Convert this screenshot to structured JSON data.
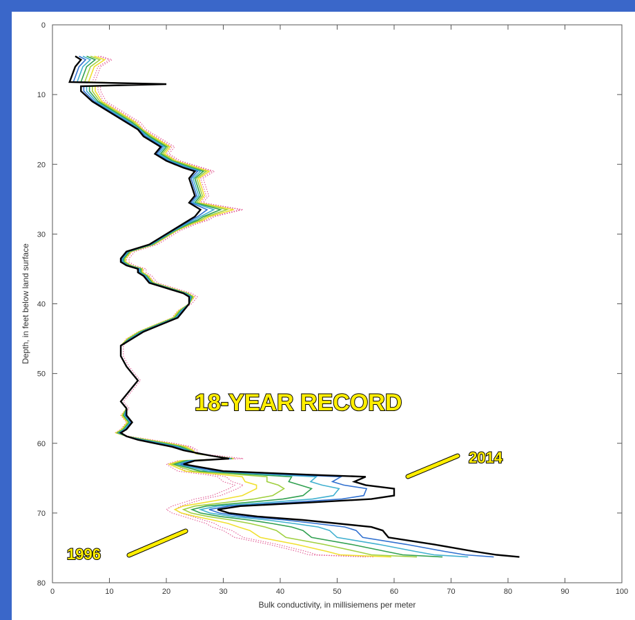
{
  "chart_data": {
    "type": "line",
    "title": "",
    "xlabel": "Bulk conductivity, in millisiemens per meter",
    "ylabel": "Depth, in feet below land surface",
    "xlim": [
      0,
      100
    ],
    "ylim": [
      80,
      0
    ],
    "y_inverted": true,
    "xticks": [
      0,
      10,
      20,
      30,
      40,
      50,
      60,
      70,
      80,
      90,
      100
    ],
    "yticks": [
      0,
      10,
      20,
      30,
      40,
      50,
      60,
      70,
      80
    ],
    "annotations": {
      "record": "18-YEAR RECORD",
      "first_year": "1996",
      "last_year": "2014"
    },
    "colors": {
      "1996": "#e05590",
      "intermediate": [
        "#f0e030",
        "#a0d040",
        "#30a050",
        "#40b0d0",
        "#3070d0"
      ],
      "2014": "#000000",
      "callout": "#ffee00"
    },
    "series": [
      {
        "name": "2014",
        "x": [
          4,
          5,
          4,
          3,
          20,
          5,
          5,
          7,
          9,
          11,
          13,
          15,
          16,
          18,
          19,
          18,
          20,
          23,
          25,
          24,
          25,
          24,
          26,
          25,
          24,
          23,
          21,
          19,
          17,
          15,
          13,
          12,
          12,
          13,
          15,
          15,
          16,
          17,
          19,
          21,
          23,
          24,
          24,
          23,
          22,
          19,
          16,
          14,
          12,
          12,
          13,
          14,
          15,
          14,
          13,
          12,
          13,
          13,
          14,
          13,
          12,
          13,
          15,
          18,
          21,
          23,
          26,
          28,
          31,
          25,
          23,
          30,
          45,
          55,
          53,
          55,
          60,
          60,
          56,
          45,
          33,
          29,
          31,
          36,
          44,
          50,
          56,
          58,
          59,
          67,
          74,
          78,
          82
        ],
        "y": [
          4.5,
          5.0,
          6.0,
          8.2,
          8.5,
          8.8,
          9.5,
          11.0,
          12.0,
          13.0,
          14.0,
          15.0,
          16.0,
          17.0,
          17.5,
          18.5,
          19.5,
          20.5,
          21.0,
          22.0,
          24.5,
          25.5,
          26.5,
          27.5,
          28.0,
          28.5,
          29.5,
          30.5,
          31.5,
          32.0,
          32.5,
          33.5,
          34.0,
          34.5,
          35.0,
          35.5,
          36.0,
          37.0,
          37.5,
          38.0,
          38.5,
          39.0,
          40.0,
          41.0,
          42.0,
          43.0,
          44.0,
          45.0,
          46.0,
          47.5,
          49.0,
          50.0,
          51.0,
          52.0,
          53.0,
          54.0,
          55.0,
          56.0,
          57.0,
          58.0,
          58.5,
          59.0,
          59.5,
          60.0,
          60.5,
          61.0,
          61.5,
          61.8,
          62.2,
          62.5,
          63.0,
          64.0,
          64.5,
          64.8,
          65.5,
          66.0,
          66.5,
          67.5,
          68.0,
          68.5,
          69.0,
          69.5,
          70.0,
          70.5,
          71.0,
          71.5,
          72.0,
          72.5,
          73.5,
          74.5,
          75.5,
          76.0,
          76.3
        ]
      },
      {
        "name": "1996",
        "x": [
          8,
          10,
          8,
          7,
          18,
          8,
          8,
          9,
          11,
          13,
          15,
          16,
          18,
          20,
          21,
          20,
          22,
          26,
          28,
          26,
          27,
          26,
          33,
          28,
          27,
          25,
          22,
          20,
          18,
          16,
          14,
          13,
          13,
          14,
          16,
          16,
          17,
          18,
          20,
          22,
          24,
          25,
          24,
          22,
          21,
          18,
          15,
          13,
          12,
          12,
          13,
          14,
          15,
          14,
          13,
          12,
          13,
          12,
          13,
          12,
          11,
          13,
          17,
          21,
          24,
          25,
          25,
          28,
          32,
          22,
          20,
          22,
          27,
          29,
          30,
          32,
          31,
          28,
          25,
          23,
          21,
          20,
          21,
          23,
          25,
          27,
          28,
          30,
          32,
          38,
          43,
          45,
          55
        ],
        "y": [
          4.5,
          5.0,
          6.0,
          8.2,
          8.5,
          8.8,
          9.5,
          11.0,
          12.0,
          13.0,
          14.0,
          15.0,
          16.0,
          17.0,
          17.5,
          18.5,
          19.5,
          20.5,
          21.0,
          22.0,
          24.5,
          25.5,
          26.5,
          27.5,
          28.0,
          28.5,
          29.5,
          30.5,
          31.5,
          32.0,
          32.5,
          33.5,
          34.0,
          34.5,
          35.0,
          35.5,
          36.0,
          37.0,
          37.5,
          38.0,
          38.5,
          39.0,
          40.0,
          41.0,
          42.0,
          43.0,
          44.0,
          45.0,
          46.0,
          47.5,
          49.0,
          50.0,
          51.0,
          52.0,
          53.0,
          54.0,
          55.0,
          56.0,
          57.0,
          58.0,
          58.5,
          59.0,
          59.5,
          60.0,
          60.5,
          61.0,
          61.5,
          61.8,
          62.2,
          62.5,
          63.0,
          64.0,
          64.5,
          64.8,
          65.5,
          66.0,
          66.5,
          67.5,
          68.0,
          68.5,
          69.0,
          69.5,
          70.0,
          70.5,
          71.0,
          71.5,
          72.0,
          72.5,
          73.5,
          74.5,
          75.5,
          76.0,
          76.3
        ]
      }
    ]
  }
}
